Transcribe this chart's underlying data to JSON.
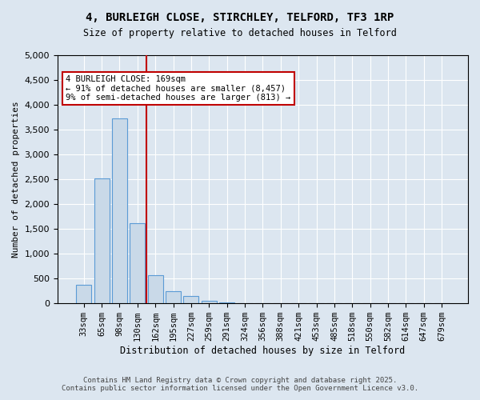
{
  "title_line1": "4, BURLEIGH CLOSE, STIRCHLEY, TELFORD, TF3 1RP",
  "title_line2": "Size of property relative to detached houses in Telford",
  "xlabel": "Distribution of detached houses by size in Telford",
  "ylabel": "Number of detached properties",
  "categories": [
    "33sqm",
    "65sqm",
    "98sqm",
    "130sqm",
    "162sqm",
    "195sqm",
    "227sqm",
    "259sqm",
    "291sqm",
    "324sqm",
    "356sqm",
    "388sqm",
    "421sqm",
    "453sqm",
    "485sqm",
    "518sqm",
    "550sqm",
    "582sqm",
    "614sqm",
    "647sqm",
    "679sqm"
  ],
  "values": [
    370,
    2520,
    3730,
    1620,
    560,
    250,
    145,
    55,
    20,
    8,
    3,
    0,
    0,
    0,
    0,
    0,
    0,
    0,
    0,
    0,
    0
  ],
  "bar_color": "#c9d9e8",
  "bar_edge_color": "#5b9bd5",
  "vline_x": 4,
  "vline_color": "#c00000",
  "annotation_text": "4 BURLEIGH CLOSE: 169sqm\n← 91% of detached houses are smaller (8,457)\n9% of semi-detached houses are larger (813) →",
  "annotation_box_color": "#c00000",
  "annotation_fill": "#ffffff",
  "bg_color": "#dce6f0",
  "plot_bg_color": "#dce6f0",
  "footer_line1": "Contains HM Land Registry data © Crown copyright and database right 2025.",
  "footer_line2": "Contains public sector information licensed under the Open Government Licence v3.0.",
  "ylim": [
    0,
    5000
  ],
  "yticks": [
    0,
    500,
    1000,
    1500,
    2000,
    2500,
    3000,
    3500,
    4000,
    4500,
    5000
  ]
}
